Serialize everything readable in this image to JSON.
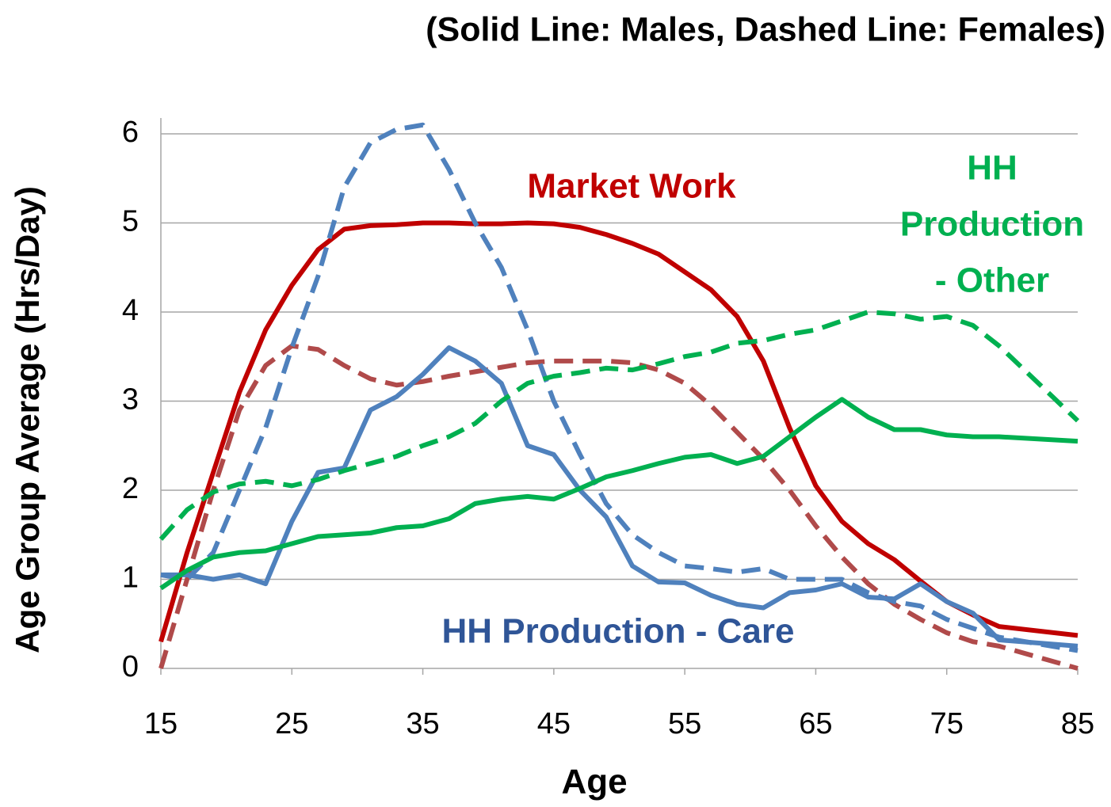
{
  "chart_data": {
    "type": "line",
    "title": "(Solid Line: Males, Dashed Line: Females)",
    "xlabel": "Age",
    "ylabel": "Age Group Average (Hrs/Day)",
    "x": [
      15,
      17,
      19,
      21,
      23,
      25,
      27,
      29,
      31,
      33,
      35,
      37,
      39,
      41,
      43,
      45,
      47,
      49,
      51,
      53,
      55,
      57,
      59,
      61,
      63,
      65,
      67,
      69,
      71,
      73,
      75,
      77,
      79,
      85
    ],
    "xlim": [
      15,
      85
    ],
    "xticks": [
      15,
      25,
      35,
      45,
      55,
      65,
      75,
      85
    ],
    "ylim": [
      0,
      6
    ],
    "yticks": [
      0,
      1,
      2,
      3,
      4,
      5,
      6
    ],
    "grid": true,
    "series": [
      {
        "color": "#c00000",
        "dashed": false,
        "values": [
          0.3,
          1.3,
          2.2,
          3.1,
          3.8,
          4.3,
          4.7,
          4.93,
          4.97,
          4.98,
          5.0,
          5.0,
          4.99,
          4.99,
          5.0,
          4.99,
          4.95,
          4.87,
          4.77,
          4.65,
          4.45,
          4.25,
          3.95,
          3.45,
          2.7,
          2.05,
          1.65,
          1.4,
          1.22,
          0.98,
          0.75,
          0.6,
          0.47,
          0.37
        ]
      },
      {
        "color": "#b04a4a",
        "dashed": true,
        "values": [
          0,
          1.0,
          2.0,
          2.9,
          3.4,
          3.62,
          3.58,
          3.4,
          3.25,
          3.18,
          3.22,
          3.28,
          3.33,
          3.38,
          3.43,
          3.45,
          3.45,
          3.45,
          3.43,
          3.35,
          3.2,
          2.95,
          2.65,
          2.35,
          2.0,
          1.6,
          1.25,
          0.95,
          0.72,
          0.55,
          0.4,
          0.3,
          0.25,
          0
        ]
      },
      {
        "color": "#4f81bd",
        "dashed": false,
        "values": [
          1.05,
          1.05,
          1.0,
          1.05,
          0.95,
          1.65,
          2.2,
          2.25,
          2.9,
          3.05,
          3.3,
          3.6,
          3.45,
          3.2,
          2.5,
          2.4,
          2.0,
          1.7,
          1.15,
          0.97,
          0.96,
          0.82,
          0.72,
          0.68,
          0.85,
          0.88,
          0.95,
          0.8,
          0.78,
          0.95,
          0.75,
          0.62,
          0.32,
          0.25
        ]
      },
      {
        "color": "#4f81bd",
        "dashed": true,
        "values": [
          1.05,
          1.0,
          1.3,
          2.0,
          2.7,
          3.6,
          4.4,
          5.4,
          5.9,
          6.05,
          6.1,
          5.6,
          5.0,
          4.5,
          3.8,
          3.0,
          2.4,
          1.85,
          1.5,
          1.3,
          1.15,
          1.12,
          1.08,
          1.12,
          1.0,
          1.0,
          1.0,
          0.85,
          0.75,
          0.7,
          0.55,
          0.45,
          0.35,
          0.2
        ]
      },
      {
        "color": "#00b050",
        "dashed": false,
        "values": [
          0.9,
          1.1,
          1.25,
          1.3,
          1.32,
          1.4,
          1.48,
          1.5,
          1.52,
          1.58,
          1.6,
          1.68,
          1.85,
          1.9,
          1.93,
          1.9,
          2.02,
          2.15,
          2.22,
          2.3,
          2.37,
          2.4,
          2.3,
          2.38,
          2.6,
          2.82,
          3.02,
          2.82,
          2.68,
          2.68,
          2.62,
          2.6,
          2.6,
          2.55
        ]
      },
      {
        "color": "#00b050",
        "dashed": true,
        "values": [
          1.45,
          1.78,
          1.98,
          2.07,
          2.1,
          2.05,
          2.12,
          2.22,
          2.3,
          2.38,
          2.5,
          2.6,
          2.75,
          3.0,
          3.2,
          3.28,
          3.32,
          3.37,
          3.35,
          3.42,
          3.5,
          3.55,
          3.65,
          3.68,
          3.75,
          3.8,
          3.9,
          4.0,
          3.98,
          3.92,
          3.95,
          3.85,
          3.62,
          2.78
        ]
      }
    ],
    "annotations": [
      {
        "lines": [
          "Market Work"
        ],
        "color": "#c00000"
      },
      {
        "lines": [
          "HH",
          "Production",
          "- Other"
        ],
        "color": "#00b050"
      },
      {
        "lines": [
          "HH Production - Care"
        ],
        "color": "#2f5597"
      }
    ]
  }
}
